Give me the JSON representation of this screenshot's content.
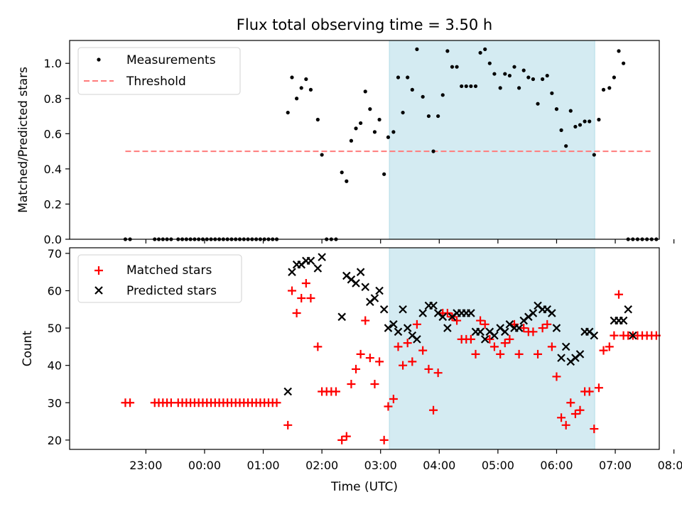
{
  "chart_data": [
    {
      "type": "scatter",
      "title": "Flux total observing time = 3.50 h",
      "ylabel": "Matched/Predicted stars",
      "xlim_hours": [
        -2.3,
        7.75
      ],
      "ylim": [
        0,
        1.13
      ],
      "yticks": [
        "0.0",
        "0.2",
        "0.4",
        "0.6",
        "0.8",
        "1.0"
      ],
      "highlight_span_hours": [
        3.15,
        6.65
      ],
      "highlight_color": "#d4ebf2",
      "threshold": {
        "name": "Threshold",
        "value": 0.5,
        "x_range_hours": [
          -1.35,
          7.6
        ],
        "color": "#ff7b7b"
      },
      "legend": {
        "placement": "top-left",
        "entries": [
          "Measurements",
          "Threshold"
        ]
      },
      "series": [
        {
          "name": "Measurements",
          "color": "#000000",
          "x": [
            -1.35,
            -1.27,
            -0.85,
            -0.78,
            -0.71,
            -0.64,
            -0.57,
            -0.45,
            -0.38,
            -0.31,
            -0.24,
            -0.17,
            -0.1,
            -0.03,
            0.04,
            0.11,
            0.18,
            0.25,
            0.32,
            0.39,
            0.46,
            0.53,
            0.6,
            0.67,
            0.74,
            0.81,
            0.88,
            0.95,
            1.02,
            1.09,
            1.16,
            1.23,
            1.42,
            1.49,
            1.57,
            1.65,
            1.73,
            1.81,
            1.93,
            2.0,
            2.08,
            2.16,
            2.24,
            2.34,
            2.42,
            2.5,
            2.58,
            2.66,
            2.74,
            2.82,
            2.9,
            2.98,
            3.06,
            3.13,
            3.22,
            3.3,
            3.38,
            3.46,
            3.54,
            3.62,
            3.72,
            3.82,
            3.9,
            3.98,
            4.06,
            4.14,
            4.22,
            4.3,
            4.38,
            4.46,
            4.54,
            4.62,
            4.7,
            4.78,
            4.86,
            4.94,
            5.04,
            5.12,
            5.2,
            5.28,
            5.36,
            5.44,
            5.52,
            5.6,
            5.68,
            5.76,
            5.84,
            5.92,
            6.0,
            6.08,
            6.16,
            6.24,
            6.32,
            6.4,
            6.48,
            6.56,
            6.64,
            6.72,
            6.8,
            6.9,
            6.98,
            7.06,
            7.14,
            7.22,
            7.3,
            7.38,
            7.46,
            7.54,
            7.62,
            7.7
          ],
          "y": [
            0,
            0,
            0,
            0,
            0,
            0,
            0,
            0,
            0,
            0,
            0,
            0,
            0,
            0,
            0,
            0,
            0,
            0,
            0,
            0,
            0,
            0,
            0,
            0,
            0,
            0,
            0,
            0,
            0,
            0,
            0,
            0,
            0.72,
            0.92,
            0.8,
            0.86,
            0.91,
            0.85,
            0.68,
            0.48,
            0,
            0,
            0,
            0.38,
            0.33,
            0.56,
            0.63,
            0.66,
            0.84,
            0.74,
            0.61,
            0.68,
            0.37,
            0.58,
            0.61,
            0.92,
            0.72,
            0.92,
            0.85,
            1.08,
            0.81,
            0.7,
            0.5,
            0.7,
            0.82,
            1.07,
            0.98,
            0.98,
            0.87,
            0.87,
            0.87,
            0.87,
            1.06,
            1.08,
            1.0,
            0.94,
            0.86,
            0.94,
            0.93,
            0.98,
            0.86,
            0.96,
            0.92,
            0.91,
            0.77,
            0.91,
            0.93,
            0.83,
            0.74,
            0.62,
            0.53,
            0.73,
            0.64,
            0.65,
            0.67,
            0.67,
            0.48,
            0.68,
            0.85,
            0.86,
            0.92,
            1.07,
            1.0,
            0,
            0,
            0,
            0,
            0,
            0,
            0
          ]
        }
      ]
    },
    {
      "type": "scatter",
      "xlabel": "Time (UTC)",
      "ylabel": "Count",
      "xlim_hours": [
        -2.3,
        7.75
      ],
      "ylim": [
        17.5,
        71.5
      ],
      "yticks": [
        "20",
        "30",
        "40",
        "50",
        "60",
        "70"
      ],
      "xticks": [
        {
          "h": -1,
          "label": "23:00"
        },
        {
          "h": 0,
          "label": "00:00"
        },
        {
          "h": 1,
          "label": "01:00"
        },
        {
          "h": 2,
          "label": "02:00"
        },
        {
          "h": 3,
          "label": "03:00"
        },
        {
          "h": 4,
          "label": "04:00"
        },
        {
          "h": 5,
          "label": "05:00"
        },
        {
          "h": 6,
          "label": "06:00"
        },
        {
          "h": 7,
          "label": "07:00"
        },
        {
          "h": 8,
          "label": "08:00"
        }
      ],
      "highlight_span_hours": [
        3.15,
        6.65
      ],
      "highlight_color": "#d4ebf2",
      "legend": {
        "placement": "top-left",
        "entries": [
          "Matched stars",
          "Predicted stars"
        ]
      },
      "series": [
        {
          "name": "Matched stars",
          "color": "#ff0000",
          "marker": "plus",
          "x": [
            -1.35,
            -1.27,
            -0.85,
            -0.78,
            -0.71,
            -0.64,
            -0.57,
            -0.45,
            -0.38,
            -0.31,
            -0.24,
            -0.17,
            -0.1,
            -0.03,
            0.04,
            0.11,
            0.18,
            0.25,
            0.32,
            0.39,
            0.46,
            0.53,
            0.6,
            0.67,
            0.74,
            0.81,
            0.88,
            0.95,
            1.02,
            1.09,
            1.16,
            1.23,
            1.42,
            1.49,
            1.57,
            1.65,
            1.73,
            1.81,
            1.93,
            2.0,
            2.08,
            2.16,
            2.24,
            2.34,
            2.42,
            2.5,
            2.58,
            2.66,
            2.74,
            2.82,
            2.9,
            2.98,
            3.06,
            3.13,
            3.22,
            3.3,
            3.38,
            3.46,
            3.54,
            3.62,
            3.72,
            3.82,
            3.9,
            3.98,
            4.06,
            4.14,
            4.22,
            4.3,
            4.38,
            4.46,
            4.54,
            4.62,
            4.7,
            4.78,
            4.86,
            4.94,
            5.04,
            5.12,
            5.2,
            5.28,
            5.36,
            5.44,
            5.52,
            5.6,
            5.68,
            5.76,
            5.84,
            5.92,
            6.0,
            6.08,
            6.16,
            6.24,
            6.32,
            6.4,
            6.48,
            6.56,
            6.64,
            6.72,
            6.8,
            6.9,
            6.98,
            7.06,
            7.14,
            7.22,
            7.3,
            7.38,
            7.46,
            7.54,
            7.62,
            7.7
          ],
          "y": [
            30,
            30,
            30,
            30,
            30,
            30,
            30,
            30,
            30,
            30,
            30,
            30,
            30,
            30,
            30,
            30,
            30,
            30,
            30,
            30,
            30,
            30,
            30,
            30,
            30,
            30,
            30,
            30,
            30,
            30,
            30,
            30,
            24,
            60,
            54,
            58,
            62,
            58,
            45,
            33,
            33,
            33,
            33,
            20,
            21,
            35,
            39,
            43,
            52,
            42,
            35,
            41,
            20,
            29,
            31,
            45,
            40,
            46,
            41,
            51,
            44,
            39,
            28,
            38,
            54,
            54,
            53,
            52,
            47,
            47,
            47,
            43,
            52,
            51,
            47,
            45,
            43,
            46,
            47,
            51,
            43,
            50,
            49,
            49,
            43,
            50,
            51,
            45,
            37,
            26,
            24,
            30,
            27,
            28,
            33,
            33,
            23,
            34,
            44,
            45,
            48,
            59,
            48,
            48,
            48,
            48,
            48,
            48,
            48,
            48
          ]
        },
        {
          "name": "Predicted stars",
          "color": "#000000",
          "marker": "x",
          "x": [
            1.42,
            1.49,
            1.57,
            1.65,
            1.73,
            1.81,
            1.93,
            2.0,
            2.34,
            2.42,
            2.5,
            2.58,
            2.66,
            2.74,
            2.82,
            2.9,
            2.98,
            3.06,
            3.13,
            3.22,
            3.3,
            3.38,
            3.46,
            3.54,
            3.62,
            3.72,
            3.82,
            3.9,
            3.98,
            4.06,
            4.14,
            4.22,
            4.3,
            4.38,
            4.46,
            4.54,
            4.62,
            4.7,
            4.78,
            4.86,
            4.94,
            5.04,
            5.12,
            5.2,
            5.28,
            5.36,
            5.44,
            5.52,
            5.6,
            5.68,
            5.76,
            5.84,
            5.92,
            6.0,
            6.08,
            6.16,
            6.24,
            6.32,
            6.4,
            6.48,
            6.56,
            6.64,
            6.98,
            7.06,
            7.14,
            7.22,
            7.3
          ],
          "y": [
            33,
            65,
            67,
            67,
            68,
            68,
            66,
            69,
            53,
            64,
            63,
            62,
            65,
            61,
            57,
            58,
            60,
            55,
            50,
            51,
            49,
            55,
            50,
            48,
            47,
            54,
            56,
            56,
            54,
            53,
            50,
            53,
            54,
            54,
            54,
            54,
            49,
            49,
            47,
            49,
            48,
            50,
            49,
            51,
            50,
            50,
            52,
            53,
            54,
            56,
            55,
            55,
            54,
            50,
            42,
            45,
            41,
            42,
            43,
            49,
            49,
            48,
            52,
            52,
            52,
            55,
            48
          ]
        }
      ]
    }
  ]
}
